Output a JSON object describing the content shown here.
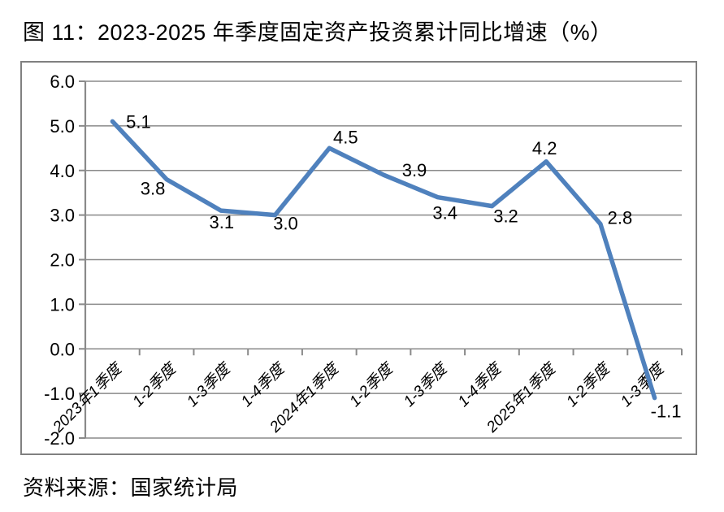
{
  "title": "图 11：2023-2025 年季度固定资产投资累计同比增速（%）",
  "source": "资料来源：国家统计局",
  "colors": {
    "line": "#4F81BD",
    "grid": "#8A8A8A",
    "axis": "#8A8A8A",
    "frame": "#808080",
    "text": "#000000",
    "background": "#FFFFFF"
  },
  "chart_data": {
    "type": "line",
    "title": "图 11：2023-2025 年季度固定资产投资累计同比增速（%）",
    "categories": [
      "2023年1季度",
      "1-2季度",
      "1-3季度",
      "1-4季度",
      "2024年1季度",
      "1-2季度",
      "1-3季度",
      "1-4季度",
      "2025年1季度",
      "1-2季度",
      "1-3季度"
    ],
    "values": [
      5.1,
      3.8,
      3.1,
      3.0,
      4.5,
      3.9,
      3.4,
      3.2,
      4.2,
      2.8,
      -1.1
    ],
    "point_labels": [
      "5.1",
      "3.8",
      "3.1",
      "3.0",
      "4.5",
      "3.9",
      "3.4",
      "3.2",
      "4.2",
      "2.8",
      "-1.1"
    ],
    "xlabel": "",
    "ylabel": "",
    "ylim": [
      -2.0,
      6.0
    ],
    "ytick_step": 1.0,
    "ytick_labels": [
      "6.0",
      "5.0",
      "4.0",
      "3.0",
      "2.0",
      "1.0",
      "0.0",
      "-1.0",
      "-2.0"
    ],
    "grid": true,
    "legend": "none"
  }
}
